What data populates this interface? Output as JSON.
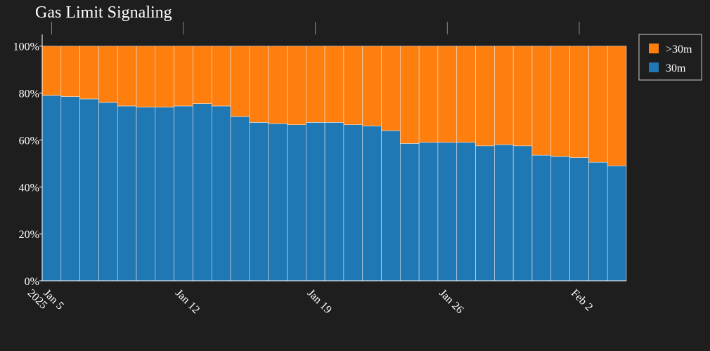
{
  "chart_data": {
    "type": "bar",
    "stacked": true,
    "title": "Gas Limit Signaling",
    "xlabel": "",
    "ylabel": "",
    "ylim": [
      0,
      1.05
    ],
    "y_ticks": [
      {
        "value": 0.0,
        "label": "0%"
      },
      {
        "value": 0.2,
        "label": "20%"
      },
      {
        "value": 0.4,
        "label": "40%"
      },
      {
        "value": 0.6,
        "label": "60%"
      },
      {
        "value": 0.8,
        "label": "80%"
      },
      {
        "value": 1.0,
        "label": "100%"
      }
    ],
    "x_ticks": [
      {
        "date": "2025-01-05",
        "label": "Jan 5",
        "label2": "2025"
      },
      {
        "date": "2025-01-12",
        "label": "Jan 12"
      },
      {
        "date": "2025-01-19",
        "label": "Jan 19"
      },
      {
        "date": "2025-01-26",
        "label": "Jan 26"
      },
      {
        "date": "2025-02-02",
        "label": "Feb 2"
      }
    ],
    "x": [
      "2025-01-05",
      "2025-01-06",
      "2025-01-07",
      "2025-01-08",
      "2025-01-09",
      "2025-01-10",
      "2025-01-11",
      "2025-01-12",
      "2025-01-13",
      "2025-01-14",
      "2025-01-15",
      "2025-01-16",
      "2025-01-17",
      "2025-01-18",
      "2025-01-19",
      "2025-01-20",
      "2025-01-21",
      "2025-01-22",
      "2025-01-23",
      "2025-01-24",
      "2025-01-25",
      "2025-01-26",
      "2025-01-27",
      "2025-01-28",
      "2025-01-29",
      "2025-01-30",
      "2025-01-31",
      "2025-02-01",
      "2025-02-02",
      "2025-02-03",
      "2025-02-04"
    ],
    "series": [
      {
        "name": "30m",
        "color": "#1f77b4",
        "values": [
          0.79,
          0.785,
          0.775,
          0.76,
          0.745,
          0.74,
          0.74,
          0.745,
          0.755,
          0.745,
          0.7,
          0.675,
          0.67,
          0.665,
          0.675,
          0.675,
          0.665,
          0.66,
          0.64,
          0.585,
          0.59,
          0.59,
          0.59,
          0.575,
          0.58,
          0.575,
          0.535,
          0.53,
          0.525,
          0.505,
          0.49
        ]
      },
      {
        "name": ">30m",
        "color": "#ff7f0e",
        "values": [
          0.21,
          0.215,
          0.225,
          0.24,
          0.255,
          0.26,
          0.26,
          0.255,
          0.245,
          0.255,
          0.3,
          0.325,
          0.33,
          0.335,
          0.325,
          0.325,
          0.335,
          0.34,
          0.36,
          0.415,
          0.41,
          0.41,
          0.41,
          0.425,
          0.42,
          0.425,
          0.465,
          0.47,
          0.475,
          0.495,
          0.51
        ]
      }
    ],
    "legend": {
      "position": "top-right",
      "order": [
        ">30m",
        "30m"
      ]
    },
    "grid": false
  }
}
